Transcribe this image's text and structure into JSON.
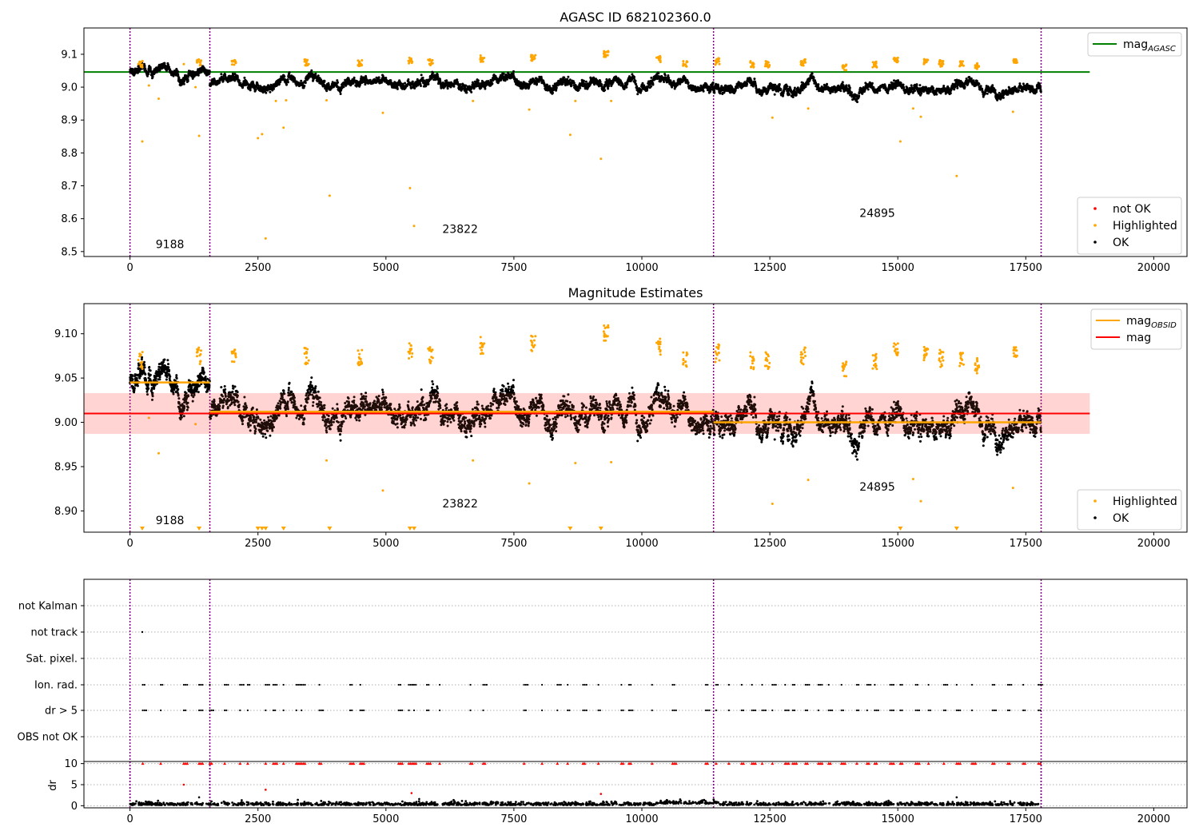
{
  "figure": {
    "background": "#ffffff"
  },
  "colors": {
    "ok": "#000000",
    "highlighted": "#ffa500",
    "not_ok": "#ff0000",
    "mag_agasc": "#008000",
    "mag_obsid": "#ffa500",
    "mag": "#ff0000",
    "band": "#ffc0c8",
    "obs_boundary": "#800080",
    "grid": "#b0b0b0"
  },
  "x_ticks": [
    "0",
    "2500",
    "5000",
    "7500",
    "10000",
    "12500",
    "15000",
    "17500",
    "20000"
  ],
  "chart_data": [
    {
      "id": "agasc",
      "type": "scatter",
      "title": "AGASC ID 682102360.0",
      "xlim": [
        -900,
        20650
      ],
      "ylim": [
        8.485,
        9.18
      ],
      "yticks": [
        "8.5",
        "8.6",
        "8.7",
        "8.8",
        "8.9",
        "9.0",
        "9.1"
      ],
      "grid": false,
      "legends": [
        {
          "placement": "upper right",
          "entries": [
            {
              "label": "mag",
              "sub": "AGASC",
              "color": "#008000",
              "marker": "line"
            }
          ]
        },
        {
          "placement": "lower right",
          "entries": [
            {
              "label": "not OK",
              "color": "#ff0000",
              "marker": "dot"
            },
            {
              "label": "Highlighted",
              "color": "#ffa500",
              "marker": "dot"
            },
            {
              "label": "OK",
              "color": "#000000",
              "marker": "dot"
            }
          ]
        }
      ],
      "hlines": [
        {
          "name": "mag_AGASC",
          "y": 9.046,
          "x": [
            -900,
            18750
          ],
          "color": "#008000"
        }
      ],
      "obs_labels": [
        {
          "text": "9188",
          "x": 780,
          "y": 8.51
        },
        {
          "text": "23822",
          "x": 6450,
          "y": 8.557
        },
        {
          "text": "24895",
          "x": 14600,
          "y": 8.605
        }
      ],
      "outliers": [
        [
          240,
          8.835
        ],
        [
          370,
          9.005
        ],
        [
          560,
          8.965
        ],
        [
          1050,
          9.07
        ],
        [
          1280,
          9.0
        ],
        [
          1350,
          8.852
        ],
        [
          2500,
          8.845
        ],
        [
          2580,
          8.857
        ],
        [
          2650,
          8.54
        ],
        [
          2850,
          8.958
        ],
        [
          3000,
          8.877
        ],
        [
          3050,
          8.96
        ],
        [
          3900,
          8.67
        ],
        [
          3840,
          8.96
        ],
        [
          4940,
          8.922
        ],
        [
          5470,
          8.693
        ],
        [
          5550,
          8.578
        ],
        [
          6700,
          8.958
        ],
        [
          7800,
          8.932
        ],
        [
          8600,
          8.855
        ],
        [
          8700,
          8.958
        ],
        [
          9200,
          8.782
        ],
        [
          9400,
          8.958
        ],
        [
          12550,
          8.907
        ],
        [
          13250,
          8.935
        ],
        [
          15050,
          8.835
        ],
        [
          15300,
          8.935
        ],
        [
          15450,
          8.91
        ],
        [
          16150,
          8.73
        ],
        [
          17250,
          8.925
        ]
      ]
    },
    {
      "id": "mag-estimates",
      "type": "scatter",
      "title": "Magnitude Estimates",
      "xlim": [
        -900,
        20650
      ],
      "ylim": [
        8.876,
        9.134
      ],
      "yticks": [
        "8.90",
        "8.95",
        "9.00",
        "9.05",
        "9.10"
      ],
      "grid": false,
      "legends": [
        {
          "placement": "upper right",
          "entries": [
            {
              "label": "mag",
              "sub": "OBSID",
              "color": "#ffa500",
              "marker": "line"
            },
            {
              "label": "mag",
              "sub": "",
              "color": "#ff0000",
              "marker": "line"
            }
          ]
        },
        {
          "placement": "lower right",
          "entries": [
            {
              "label": "Highlighted",
              "color": "#ffa500",
              "marker": "dot"
            },
            {
              "label": "OK",
              "color": "#000000",
              "marker": "dot"
            }
          ]
        }
      ],
      "mag_line": {
        "y": 9.01,
        "x": [
          -900,
          18750
        ],
        "color": "#ff0000"
      },
      "mag_band": {
        "y": [
          8.987,
          9.033
        ],
        "x": [
          -900,
          18750
        ]
      },
      "obsid_segments": [
        {
          "x": [
            0,
            1560
          ],
          "y": 9.045
        },
        {
          "x": [
            1560,
            11400
          ],
          "y": 9.012
        },
        {
          "x": [
            11400,
            17800
          ],
          "y": 9.0
        }
      ],
      "obs_labels": [
        {
          "text": "9188",
          "x": 780,
          "y": 8.885
        },
        {
          "text": "23822",
          "x": 6450,
          "y": 8.904
        },
        {
          "text": "24895",
          "x": 14600,
          "y": 8.923
        }
      ],
      "outliers": [
        [
          370,
          9.005
        ],
        [
          560,
          8.965
        ],
        [
          1280,
          8.998
        ],
        [
          4940,
          8.923
        ],
        [
          7800,
          8.931
        ],
        [
          8700,
          8.954
        ],
        [
          9400,
          8.955
        ],
        [
          12550,
          8.908
        ],
        [
          13250,
          8.935
        ],
        [
          15300,
          8.936
        ],
        [
          15450,
          8.911
        ],
        [
          17250,
          8.926
        ],
        [
          3840,
          8.957
        ],
        [
          6700,
          8.957
        ]
      ],
      "below_axis_markers": [
        240,
        1350,
        2500,
        2580,
        2650,
        3000,
        3900,
        5470,
        5550,
        8600,
        9200,
        15050,
        16150
      ]
    },
    {
      "id": "flags",
      "type": "scatter",
      "title": "",
      "xlim": [
        -900,
        20650
      ],
      "categories": [
        "not Kalman",
        "not track",
        "Sat. pixel.",
        "Ion. rad.",
        "dr > 5",
        "OBS not OK"
      ],
      "grid": true,
      "single_points": [
        {
          "category": "not track",
          "x": 240
        }
      ],
      "flag_clusters": [
        250,
        600,
        1050,
        1350,
        1560,
        1850,
        2150,
        2300,
        2650,
        2800,
        3000,
        3250,
        3350,
        3700,
        4300,
        4500,
        5250,
        5450,
        5550,
        5800,
        6050,
        6650,
        6900,
        7700,
        8050,
        8350,
        8550,
        8850,
        9150,
        9600,
        9750,
        10200,
        10600,
        11250,
        11450,
        11700,
        11950,
        12150,
        12350,
        12550,
        12800,
        12950,
        13200,
        13450,
        13650,
        13900,
        14200,
        14400,
        14550,
        14850,
        15050,
        15350,
        15600,
        15900,
        16150,
        16450,
        16850,
        17150,
        17450,
        17750
      ]
    },
    {
      "id": "dr",
      "type": "scatter",
      "title": "",
      "xlim": [
        -900,
        20650
      ],
      "ylim": [
        -0.5,
        10.5
      ],
      "yticks": [
        "0",
        "5",
        "10"
      ],
      "ylabel": "dr",
      "grid": true,
      "capped_value": 10,
      "outliers": [
        [
          1050,
          5.0
        ],
        [
          2650,
          3.8
        ],
        [
          5500,
          3.0
        ],
        [
          5650,
          1.6
        ],
        [
          1350,
          2.0
        ],
        [
          9200,
          2.8
        ],
        [
          16150,
          2.0
        ]
      ]
    }
  ],
  "obs_boundaries": [
    0,
    1560,
    11400,
    17800
  ]
}
